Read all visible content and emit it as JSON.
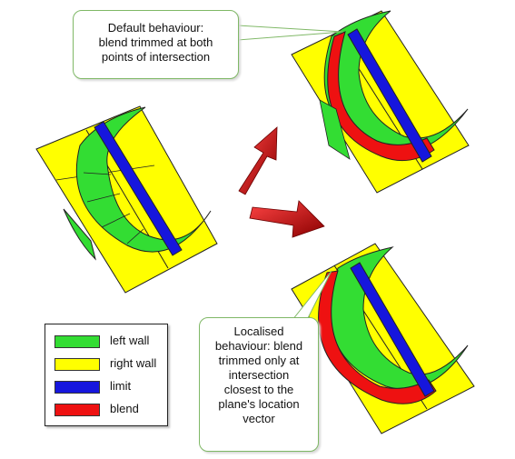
{
  "callouts": {
    "top": [
      "Default behaviour:",
      "blend trimmed at both",
      "points of intersection"
    ],
    "bottom": [
      "Localised",
      "behaviour: blend",
      "trimmed only at",
      "intersection",
      "closest to the",
      "plane's location",
      "vector"
    ]
  },
  "legend": [
    {
      "label": "left wall",
      "color": "#33dd33"
    },
    {
      "label": "right wall",
      "color": "#ffff00"
    },
    {
      "label": "limit",
      "color": "#1616dd"
    },
    {
      "label": "blend",
      "color": "#ee1111"
    }
  ],
  "colors": {
    "plane": "#ffff00",
    "wall": "#33dd33",
    "limit": "#1616dd",
    "blend": "#ee1111",
    "arrow": "#cc1111",
    "callout_border": "#7fb866"
  }
}
